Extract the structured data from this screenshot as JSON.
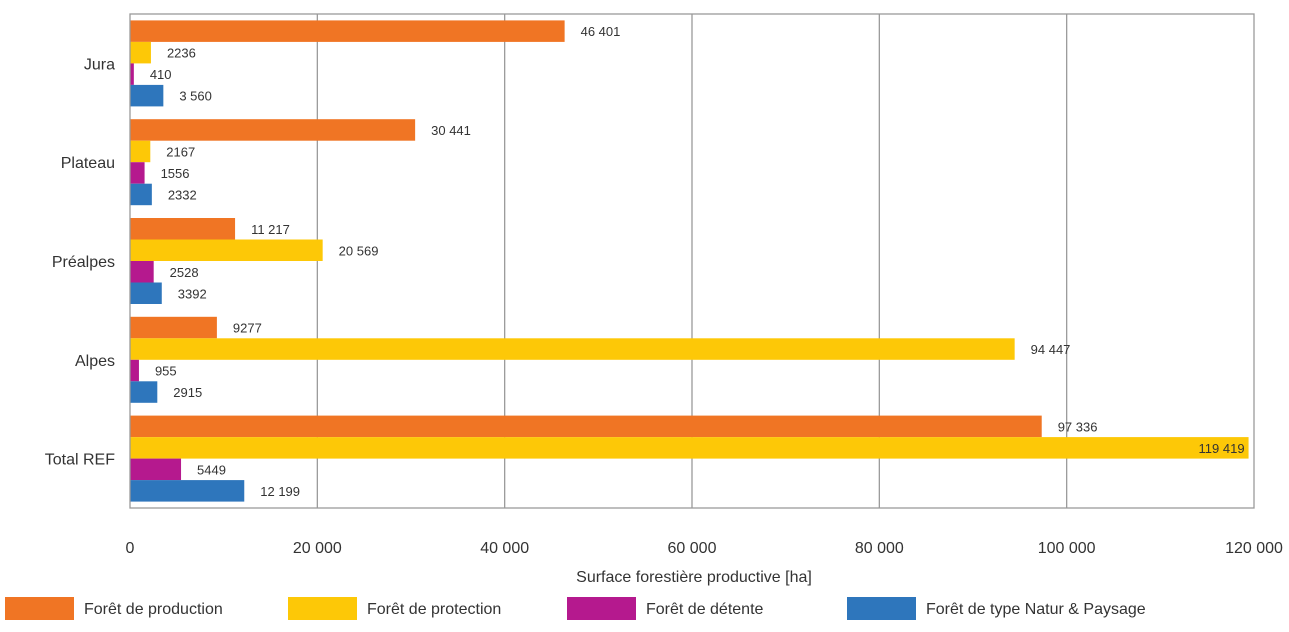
{
  "chart_data": {
    "type": "bar",
    "orientation": "horizontal",
    "title": "",
    "xlabel": "Surface forestière productive [ha]",
    "ylabel": "",
    "xlim": [
      0,
      120000
    ],
    "xticks": [
      0,
      20000,
      40000,
      60000,
      80000,
      100000,
      120000
    ],
    "xtick_labels": [
      "0",
      "20 000",
      "40 000",
      "60 000",
      "80 000",
      "100 000",
      "120 000"
    ],
    "grid": true,
    "legend_position": "bottom",
    "categories": [
      "Jura",
      "Plateau",
      "Préalpes",
      "Alpes",
      "Total REF"
    ],
    "series": [
      {
        "name": "Forêt de production",
        "color": "#f07524",
        "values": [
          46401,
          30441,
          11217,
          9277,
          97336
        ],
        "labels": [
          "46 401",
          "30 441",
          "11 217",
          "9277",
          "97 336"
        ]
      },
      {
        "name": "Forêt de protection",
        "color": "#fdc807",
        "values": [
          2236,
          2167,
          20569,
          94447,
          119419
        ],
        "labels": [
          "2236",
          "2167",
          "20 569",
          "94 447",
          "119 419"
        ]
      },
      {
        "name": "Forêt de détente",
        "color": "#b5198e",
        "values": [
          410,
          1556,
          2528,
          955,
          5449
        ],
        "labels": [
          "410",
          "1556",
          "2528",
          "955",
          "5449"
        ]
      },
      {
        "name": "Forêt de type Natur & Paysage",
        "color": "#2e76bc",
        "values": [
          3560,
          2332,
          3392,
          2915,
          12199
        ],
        "labels": [
          "3 560",
          "2332",
          "3392",
          "2915",
          "12 199"
        ]
      }
    ]
  }
}
